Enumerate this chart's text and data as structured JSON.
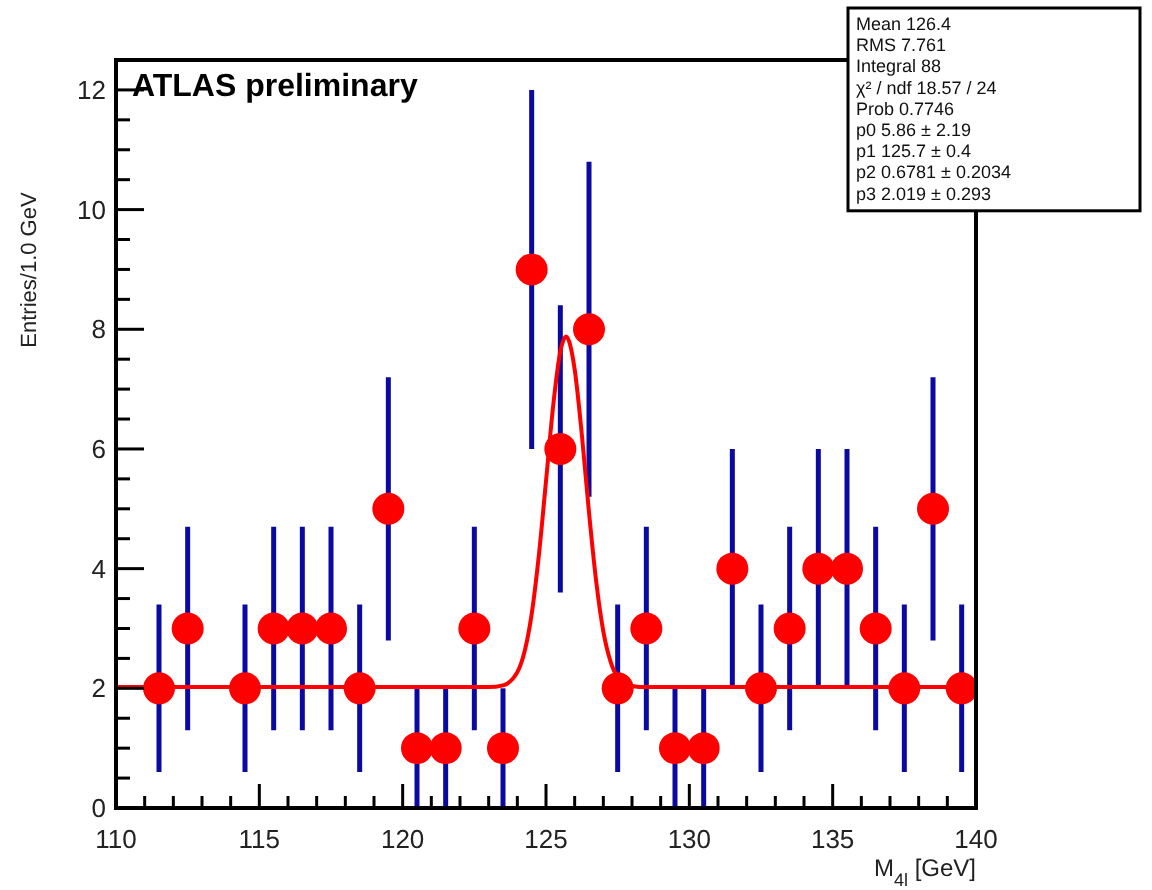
{
  "chart_data": {
    "type": "scatter",
    "title": "ATLAS preliminary",
    "xlabel": "M$_{4l}$ [GeV]",
    "ylabel": "Entries/1.0 GeV",
    "xlim": [
      110,
      140
    ],
    "xticks": [
      110,
      {
        "value": 111,
        "label": null
      },
      {
        "value": 112,
        "label": null
      },
      {
        "value": 113,
        "label": null
      },
      {
        "value": 114,
        "label": null
      },
      115,
      {
        "value": 116,
        "label": null
      },
      {
        "value": 117,
        "label": null
      },
      {
        "value": 118,
        "label": null
      },
      {
        "value": 119,
        "label": null
      },
      120,
      {
        "value": 121,
        "label": null
      },
      {
        "value": 122,
        "label": null
      },
      {
        "value": 123,
        "label": null
      },
      {
        "value": 124,
        "label": null
      },
      125,
      {
        "value": 126,
        "label": null
      },
      {
        "value": 127,
        "label": null
      },
      {
        "value": 128,
        "label": null
      },
      {
        "value": 129,
        "label": null
      },
      130,
      {
        "value": 131,
        "label": null
      },
      {
        "value": 132,
        "label": null
      },
      {
        "value": 133,
        "label": null
      },
      {
        "value": 134,
        "label": null
      },
      135,
      {
        "value": 136,
        "label": null
      },
      {
        "value": 137,
        "label": null
      },
      {
        "value": 138,
        "label": null
      },
      {
        "value": 139,
        "label": null
      },
      140
    ],
    "ylim": [
      0,
      12.5
    ],
    "yticks": [
      0,
      {
        "value": 0.5,
        "label": null
      },
      {
        "value": 1,
        "label": null
      },
      {
        "value": 1.5,
        "label": null
      },
      2,
      {
        "value": 2.5,
        "label": null
      },
      {
        "value": 3,
        "label": null
      },
      {
        "value": 3.5,
        "label": null
      },
      4,
      {
        "value": 4.5,
        "label": null
      },
      {
        "value": 5,
        "label": null
      },
      {
        "value": 5.5,
        "label": null
      },
      6,
      {
        "value": 6.5,
        "label": null
      },
      {
        "value": 7,
        "label": null
      },
      {
        "value": 7.5,
        "label": null
      },
      8,
      {
        "value": 8.5,
        "label": null
      },
      {
        "value": 9,
        "label": null
      },
      {
        "value": 9.5,
        "label": null
      },
      10,
      {
        "value": 10.5,
        "label": null
      },
      {
        "value": 11,
        "label": null
      },
      {
        "value": 11.5,
        "label": null
      },
      12
    ],
    "marker": "circle",
    "series": [
      {
        "color": "#ff0000",
        "x": [
          111.5,
          112.5,
          114.5,
          115.5,
          116.5,
          117.5,
          118.5,
          119.5,
          120.5,
          121.5,
          122.5,
          123.5,
          124.5,
          125.5,
          126.5,
          127.5,
          128.5,
          129.5,
          130.5,
          131.5,
          132.5,
          133.5,
          134.5,
          135.5,
          136.5,
          137.5,
          138.5,
          139.5
        ],
        "values": [
          2,
          3,
          2,
          3,
          3,
          3,
          2,
          5,
          1,
          1,
          3,
          1,
          9,
          6,
          8,
          2,
          3,
          1,
          1,
          4,
          2,
          3,
          4,
          4,
          3,
          2,
          5,
          2
        ],
        "errors": [
          1.4,
          1.7,
          1.4,
          1.7,
          1.7,
          1.7,
          1.4,
          2.2,
          1,
          1,
          1.7,
          1,
          3,
          2.4,
          2.8,
          1.4,
          1.7,
          1,
          1,
          2,
          1.4,
          1.7,
          2,
          2,
          1.7,
          1.4,
          2.2,
          1.4
        ]
      },
      {
        "type": "line",
        "color": "#ff0000",
        "marker": "none",
        "x": [
          110,
          122,
          123,
          123.5,
          124,
          124.25,
          124.5,
          124.75,
          125,
          125.25,
          125.5,
          125.7,
          126,
          126.25,
          126.5,
          126.75,
          127,
          127.25,
          127.5,
          128,
          128.5,
          140
        ],
        "values": [
          2.02,
          2.02,
          2.02,
          2.05,
          2.27,
          2.61,
          3.24,
          4.22,
          5.46,
          6.72,
          7.63,
          7.88,
          7.33,
          6.24,
          4.94,
          3.79,
          2.95,
          2.45,
          2.19,
          2.04,
          2.02,
          2.02
        ]
      }
    ],
    "annotations": [
      "Mean 126.4",
      "RMS 7.761",
      "Integral 88",
      "χ² / ndf 18.57 / 24",
      "Prob 0.7746",
      "p0 5.86 ± 2.19",
      "p1 125.7 ± 0.4",
      "p2 0.6781 ± 0.2034",
      "p3 2.019 ± 0.293"
    ]
  }
}
